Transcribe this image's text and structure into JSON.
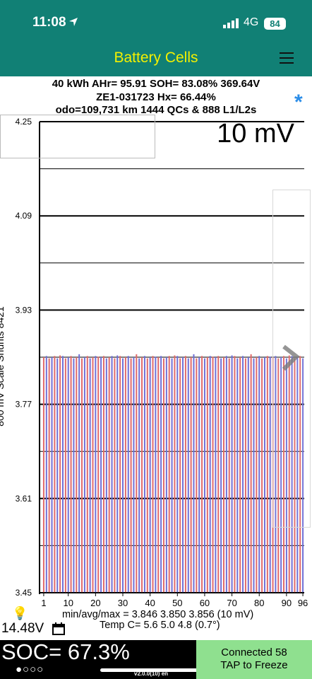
{
  "status_bar": {
    "time": "11:08",
    "network": "4G",
    "battery": "84"
  },
  "app": {
    "title": "Battery Cells"
  },
  "header": {
    "line1": "40 kWh  AHr= 95.91  SOH= 83.08%   369.64V",
    "line2": "ZE1-031723   Hx= 66.44%",
    "line3": "odo=109,731 km 1444 QCs & 888 L1/L2s"
  },
  "scale_label": "10 mV",
  "y_axis_title": "800 mV Scale   Shunts 8421",
  "chart_data": {
    "type": "bar",
    "x_ticks": [
      "1",
      "10",
      "20",
      "30",
      "40",
      "50",
      "60",
      "70",
      "80",
      "90",
      "96"
    ],
    "y_ticks": [
      "3.45",
      "3.61",
      "3.77",
      "3.93",
      "4.09",
      "4.25"
    ],
    "ylim": [
      3.45,
      4.25
    ],
    "cell_count": 96,
    "cell_min": 3.846,
    "cell_avg": 3.85,
    "cell_max": 3.856,
    "colors": {
      "odd": "#e06a6a",
      "even": "#6f6fd6"
    }
  },
  "stats": {
    "minmax": "min/avg/max = 3.846 3.850 3.856  (10 mV)",
    "temp": "Temp C= 5.6  5.0  4.8  (0.7°)"
  },
  "aux_voltage": "14.48V",
  "soc": "SOC= 67.3%",
  "page_dots": "●○○○",
  "version": "v2.0.0(10) en",
  "connect": {
    "line1": "Connected 58",
    "line2": "TAP to Freeze"
  }
}
